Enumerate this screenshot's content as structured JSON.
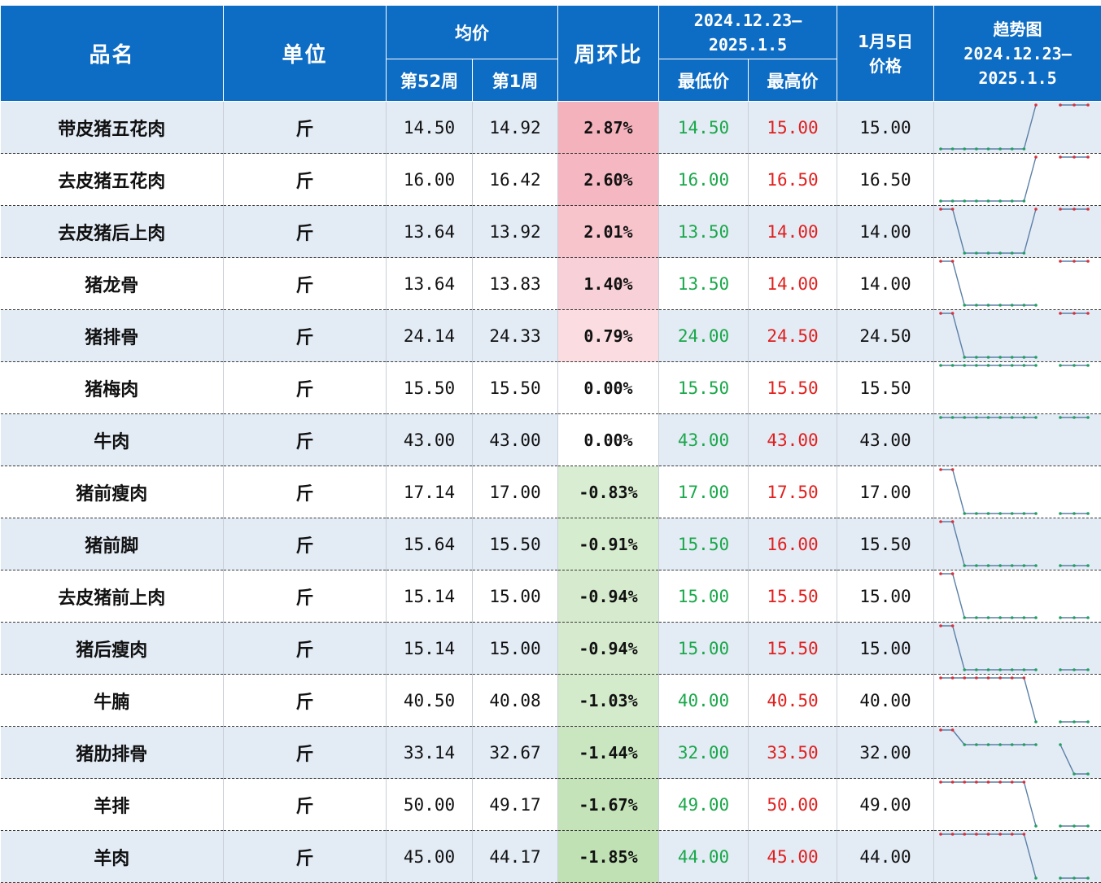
{
  "header": {
    "name": "品名",
    "unit": "单位",
    "avg": "均价",
    "wk52": "第52周",
    "wk1": "第1周",
    "wow": "周环比",
    "range_title": "2024.12.23–2025.1.5",
    "range_line1": "2024.12.23–",
    "range_line2": "2025.1.5",
    "min": "最低价",
    "max": "最高价",
    "jan5_line1": "1月5日",
    "jan5_line2": "价格",
    "trend_line1": "趋势图",
    "trend_line2": "2024.12.23–",
    "trend_line3": "2025.1.5"
  },
  "colors": {
    "header_bg": "#0d6cc4",
    "row_alt": "#e3ebf5",
    "low_text": "#1aa84a",
    "high_text": "#e0201e",
    "spark_line": "#5a7fa6",
    "spark_high_dot": "#d9303a",
    "spark_low_dot": "#20a060"
  },
  "rows": [
    {
      "name": "带皮猪五花肉",
      "unit": "斤",
      "w52": "14.50",
      "w1": "14.92",
      "pct": "2.87%",
      "pct_value": 2.87,
      "min": "14.50",
      "max": "15.00",
      "jan5": "15.00",
      "trend": [
        14.5,
        14.5,
        14.5,
        14.5,
        14.5,
        14.5,
        14.5,
        14.5,
        15,
        null,
        15,
        15,
        15
      ]
    },
    {
      "name": "去皮猪五花肉",
      "unit": "斤",
      "w52": "16.00",
      "w1": "16.42",
      "pct": "2.60%",
      "pct_value": 2.6,
      "min": "16.00",
      "max": "16.50",
      "jan5": "16.50",
      "trend": [
        16,
        16,
        16,
        16,
        16,
        16,
        16,
        16,
        16.5,
        null,
        16.5,
        16.5,
        16.5
      ]
    },
    {
      "name": "去皮猪后上肉",
      "unit": "斤",
      "w52": "13.64",
      "w1": "13.92",
      "pct": "2.01%",
      "pct_value": 2.01,
      "min": "13.50",
      "max": "14.00",
      "jan5": "14.00",
      "trend": [
        14,
        14,
        13.5,
        13.5,
        13.5,
        13.5,
        13.5,
        13.5,
        14,
        null,
        14,
        14,
        14
      ]
    },
    {
      "name": "猪龙骨",
      "unit": "斤",
      "w52": "13.64",
      "w1": "13.83",
      "pct": "1.40%",
      "pct_value": 1.4,
      "min": "13.50",
      "max": "14.00",
      "jan5": "14.00",
      "trend": [
        14,
        14,
        13.5,
        13.5,
        13.5,
        13.5,
        13.5,
        13.5,
        13.5,
        null,
        14,
        14,
        14
      ]
    },
    {
      "name": "猪排骨",
      "unit": "斤",
      "w52": "24.14",
      "w1": "24.33",
      "pct": "0.79%",
      "pct_value": 0.79,
      "min": "24.00",
      "max": "24.50",
      "jan5": "24.50",
      "trend": [
        24.5,
        24.5,
        24,
        24,
        24,
        24,
        24,
        24,
        24,
        null,
        24.5,
        24.5,
        24.5
      ]
    },
    {
      "name": "猪梅肉",
      "unit": "斤",
      "w52": "15.50",
      "w1": "15.50",
      "pct": "0.00%",
      "pct_value": 0,
      "min": "15.50",
      "max": "15.50",
      "jan5": "15.50",
      "trend": [
        15.5,
        15.5,
        15.5,
        15.5,
        15.5,
        15.5,
        15.5,
        15.5,
        15.5,
        null,
        15.5,
        15.5,
        15.5
      ]
    },
    {
      "name": "牛肉",
      "unit": "斤",
      "w52": "43.00",
      "w1": "43.00",
      "pct": "0.00%",
      "pct_value": 0,
      "min": "43.00",
      "max": "43.00",
      "jan5": "43.00",
      "trend": [
        43,
        43,
        43,
        43,
        43,
        43,
        43,
        43,
        43,
        null,
        43,
        43,
        43
      ]
    },
    {
      "name": "猪前瘦肉",
      "unit": "斤",
      "w52": "17.14",
      "w1": "17.00",
      "pct": "-0.83%",
      "pct_value": -0.83,
      "min": "17.00",
      "max": "17.50",
      "jan5": "17.00",
      "trend": [
        17.5,
        17.5,
        17,
        17,
        17,
        17,
        17,
        17,
        17,
        null,
        17,
        17,
        17
      ]
    },
    {
      "name": "猪前脚",
      "unit": "斤",
      "w52": "15.64",
      "w1": "15.50",
      "pct": "-0.91%",
      "pct_value": -0.91,
      "min": "15.50",
      "max": "16.00",
      "jan5": "15.50",
      "trend": [
        16,
        16,
        15.5,
        15.5,
        15.5,
        15.5,
        15.5,
        15.5,
        15.5,
        null,
        15.5,
        15.5,
        15.5
      ]
    },
    {
      "name": "去皮猪前上肉",
      "unit": "斤",
      "w52": "15.14",
      "w1": "15.00",
      "pct": "-0.94%",
      "pct_value": -0.94,
      "min": "15.00",
      "max": "15.50",
      "jan5": "15.00",
      "trend": [
        15.5,
        15.5,
        15,
        15,
        15,
        15,
        15,
        15,
        15,
        null,
        15,
        15,
        15
      ]
    },
    {
      "name": "猪后瘦肉",
      "unit": "斤",
      "w52": "15.14",
      "w1": "15.00",
      "pct": "-0.94%",
      "pct_value": -0.94,
      "min": "15.00",
      "max": "15.50",
      "jan5": "15.00",
      "trend": [
        15.5,
        15.5,
        15,
        15,
        15,
        15,
        15,
        15,
        15,
        null,
        15,
        15,
        15
      ]
    },
    {
      "name": "牛腩",
      "unit": "斤",
      "w52": "40.50",
      "w1": "40.08",
      "pct": "-1.03%",
      "pct_value": -1.03,
      "min": "40.00",
      "max": "40.50",
      "jan5": "40.00",
      "trend": [
        40.5,
        40.5,
        40.5,
        40.5,
        40.5,
        40.5,
        40.5,
        40.5,
        40,
        null,
        40,
        40,
        40
      ]
    },
    {
      "name": "猪肋排骨",
      "unit": "斤",
      "w52": "33.14",
      "w1": "32.67",
      "pct": "-1.44%",
      "pct_value": -1.44,
      "min": "32.00",
      "max": "33.50",
      "jan5": "32.00",
      "trend": [
        33.5,
        33.5,
        33,
        33,
        33,
        33,
        33,
        33,
        33,
        null,
        33,
        32,
        32
      ]
    },
    {
      "name": "羊排",
      "unit": "斤",
      "w52": "50.00",
      "w1": "49.17",
      "pct": "-1.67%",
      "pct_value": -1.67,
      "min": "49.00",
      "max": "50.00",
      "jan5": "49.00",
      "trend": [
        50,
        50,
        50,
        50,
        50,
        50,
        50,
        50,
        49,
        null,
        49,
        49,
        49
      ]
    },
    {
      "name": "羊肉",
      "unit": "斤",
      "w52": "45.00",
      "w1": "44.17",
      "pct": "-1.85%",
      "pct_value": -1.85,
      "min": "44.00",
      "max": "45.00",
      "jan5": "44.00",
      "trend": [
        45,
        45,
        45,
        45,
        45,
        45,
        45,
        45,
        44,
        null,
        44,
        44,
        44
      ]
    }
  ]
}
